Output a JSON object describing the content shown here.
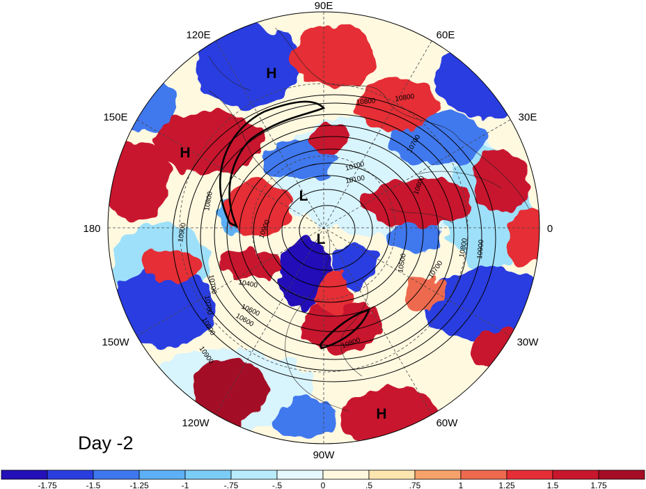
{
  "map": {
    "longitude_labels": [
      {
        "id": "90e",
        "text": "90E"
      },
      {
        "id": "60e",
        "text": "60E"
      },
      {
        "id": "120e",
        "text": "120E"
      },
      {
        "id": "30e",
        "text": "30E"
      },
      {
        "id": "150e",
        "text": "150E"
      },
      {
        "id": "0",
        "text": "0"
      },
      {
        "id": "180",
        "text": "180"
      },
      {
        "id": "30w",
        "text": "30W"
      },
      {
        "id": "150w",
        "text": "150W"
      },
      {
        "id": "60w",
        "text": "60W"
      },
      {
        "id": "120w",
        "text": "120W"
      },
      {
        "id": "90w",
        "text": "90W"
      }
    ],
    "pressure_centers": [
      {
        "id": "h-asia",
        "text": "H"
      },
      {
        "id": "h-pacific",
        "text": "H"
      },
      {
        "id": "l-arctic-1",
        "text": "L"
      },
      {
        "id": "l-arctic-2",
        "text": "L"
      },
      {
        "id": "h-south-america",
        "text": "H"
      }
    ],
    "contour_labels": [
      "10800",
      "10800",
      "10700",
      "10600",
      "10100",
      "10100",
      "10800",
      "10900",
      "10900",
      "10700",
      "10700",
      "10500",
      "10400",
      "10600",
      "10800",
      "10900",
      "10800",
      "10600",
      "10700",
      "10800",
      "10900"
    ],
    "panel_label": "Day -2",
    "colors": {
      "shading_palette": [
        "#2410b8",
        "#2a3ee0",
        "#3f78ee",
        "#5db0f5",
        "#9ee0fa",
        "#d8f4fc",
        "#fff9e0",
        "#fde2a6",
        "#f6a26b",
        "#ee6a4f",
        "#e52e35",
        "#c8172d",
        "#a40d25"
      ],
      "contour_line": "#000000",
      "grid_line": "#555555"
    }
  },
  "colorbar": {
    "colors": [
      "#2410b8",
      "#2a3ee0",
      "#3f78ee",
      "#5db0f5",
      "#7cccf8",
      "#b8ecfc",
      "#e4f8fe",
      "#fff8df",
      "#fde5b0",
      "#f6a26b",
      "#ee6a4f",
      "#e52e35",
      "#c8172d",
      "#a40d25"
    ],
    "tick_labels": [
      "-1.75",
      "-1.5",
      "-1.25",
      "-1",
      "-.75",
      "-.5",
      "0",
      ".5",
      ".75",
      "1",
      "1.25",
      "1.5",
      "1.75"
    ]
  }
}
